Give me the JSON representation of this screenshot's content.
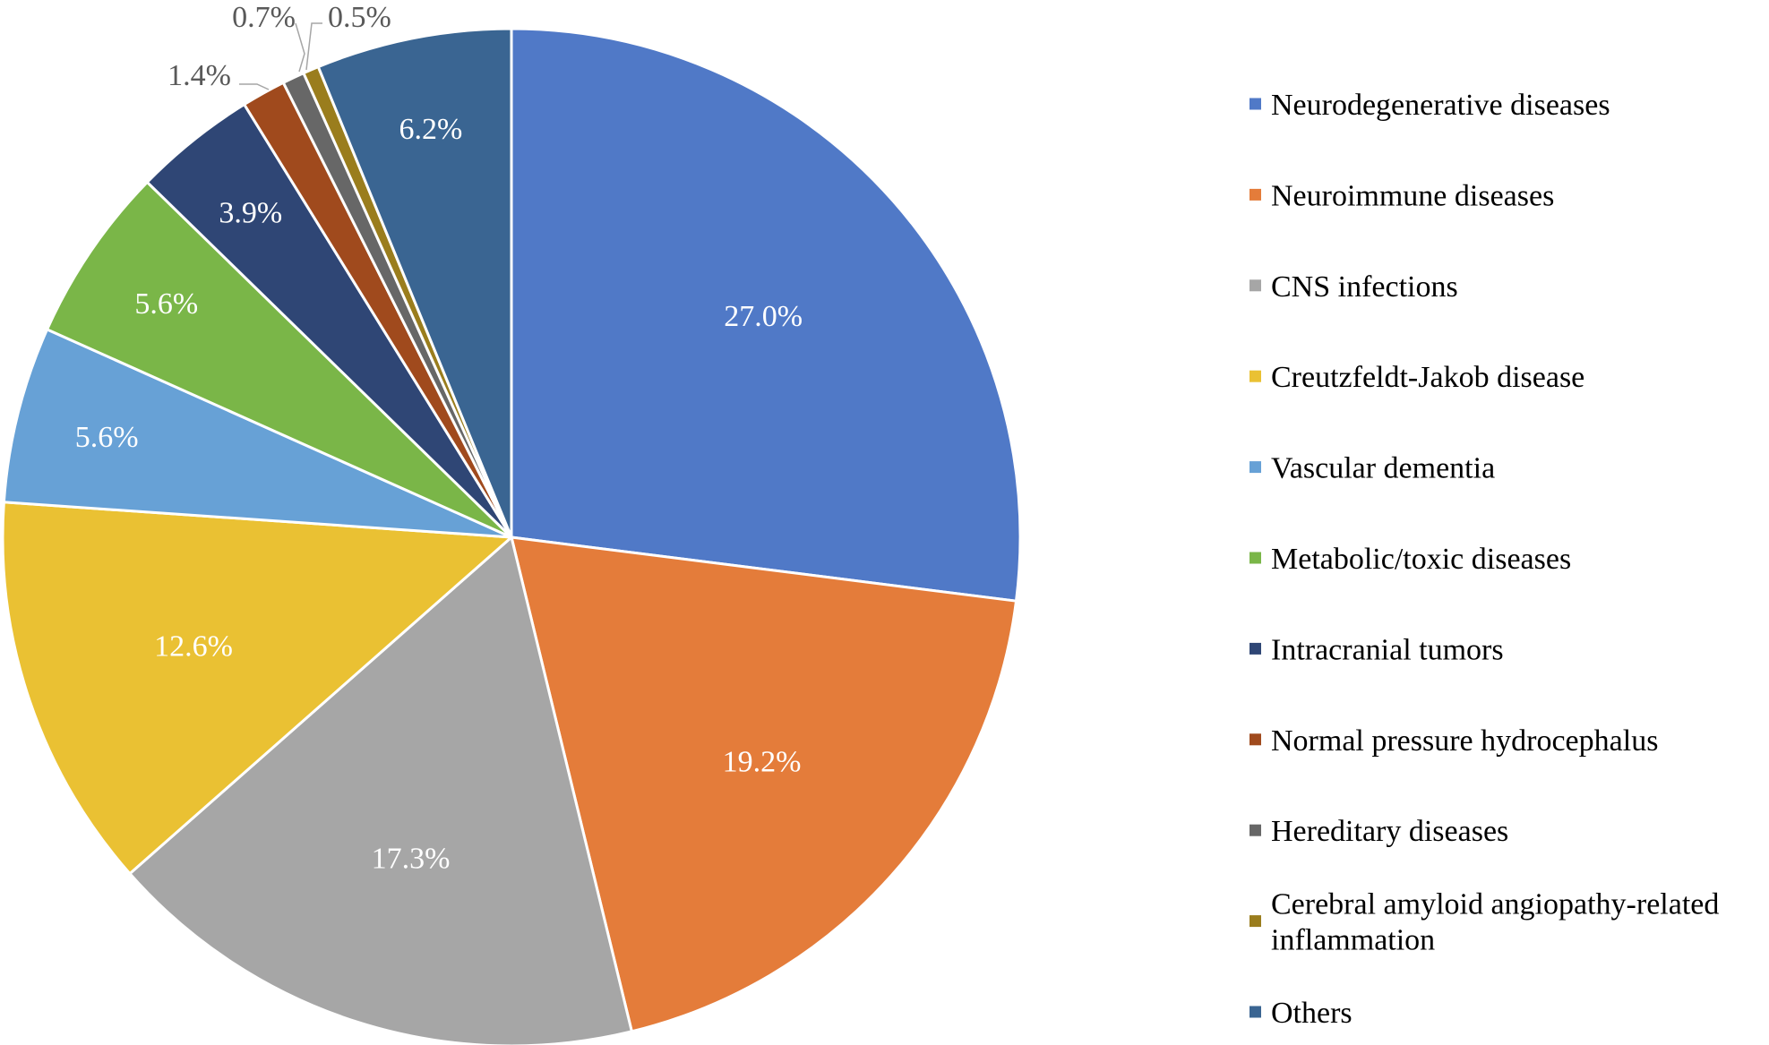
{
  "chart_data": {
    "type": "pie",
    "title": "",
    "start_angle_deg": 0,
    "direction": "clockwise",
    "slices": [
      {
        "name": "Neurodegenerative diseases",
        "label_lines": [
          "Neurodegenerative diseases"
        ],
        "value": 27.0,
        "label": "27.0%",
        "color": "#5079c7"
      },
      {
        "name": "Neuroimmune diseases",
        "label_lines": [
          "Neuroimmune diseases"
        ],
        "value": 19.2,
        "label": "19.2%",
        "color": "#e47c3a"
      },
      {
        "name": "CNS infections",
        "label_lines": [
          "CNS infections"
        ],
        "value": 17.3,
        "label": "17.3%",
        "color": "#a6a6a6"
      },
      {
        "name": "Creutzfeldt-Jakob disease",
        "label_lines": [
          "Creutzfeldt-Jakob disease"
        ],
        "value": 12.6,
        "label": "12.6%",
        "color": "#eac133"
      },
      {
        "name": "Vascular dementia",
        "label_lines": [
          "Vascular dementia"
        ],
        "value": 5.6,
        "label": "5.6%",
        "color": "#67a1d6"
      },
      {
        "name": "Metabolic/toxic diseases",
        "label_lines": [
          "Metabolic/toxic diseases"
        ],
        "value": 5.6,
        "label": "5.6%",
        "color": "#7ab648"
      },
      {
        "name": "Intracranial tumors",
        "label_lines": [
          "Intracranial tumors"
        ],
        "value": 3.9,
        "label": "3.9%",
        "color": "#2f4675"
      },
      {
        "name": "Normal pressure hydrocephalus",
        "label_lines": [
          "Normal pressure hydrocephalus"
        ],
        "value": 1.4,
        "label": "1.4%",
        "color": "#a04a1d"
      },
      {
        "name": "Hereditary diseases",
        "label_lines": [
          "Hereditary diseases"
        ],
        "value": 0.7,
        "label": "0.7%",
        "color": "#676767"
      },
      {
        "name": "Cerebral amyloid angiopathy-related inflammation",
        "label_lines": [
          "Cerebral amyloid angiopathy-related",
          "inflammation"
        ],
        "value": 0.5,
        "label": "0.5%",
        "color": "#9a7d1d"
      },
      {
        "name": "Others",
        "label_lines": [
          "Others"
        ],
        "value": 6.2,
        "label": "6.2%",
        "color": "#3a6592"
      }
    ],
    "legend": {
      "position": "right"
    }
  }
}
